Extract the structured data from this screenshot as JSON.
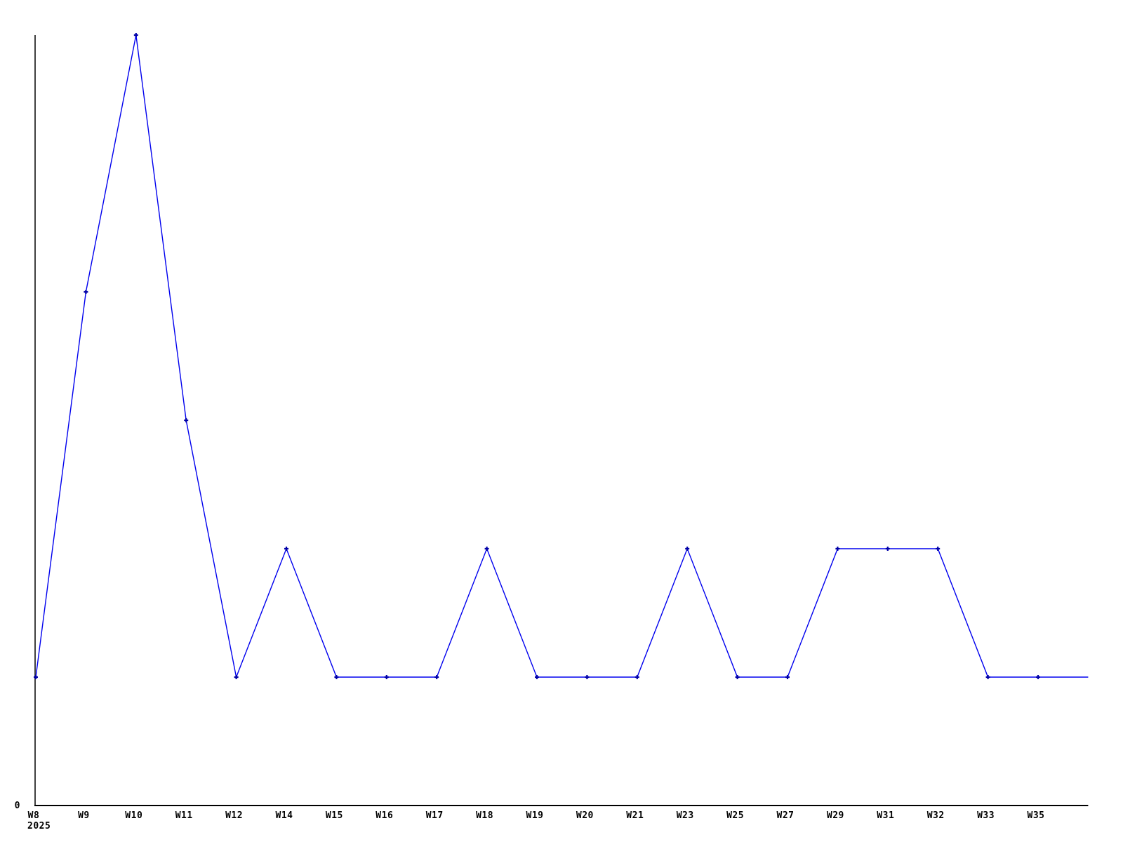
{
  "chart_data": {
    "type": "line",
    "title": "",
    "xlabel": "",
    "ylabel": "",
    "categories": [
      "W8",
      "W9",
      "W10",
      "W11",
      "W12",
      "W14",
      "W15",
      "W16",
      "W17",
      "W18",
      "W19",
      "W20",
      "W21",
      "W23",
      "W25",
      "W27",
      "W29",
      "W31",
      "W32",
      "W33",
      "W35"
    ],
    "values": [
      1,
      4,
      6,
      3,
      1,
      2,
      1,
      1,
      1,
      2,
      1,
      1,
      1,
      2,
      1,
      1,
      2,
      2,
      2,
      1,
      1
    ],
    "trailing_point": {
      "label": "",
      "value": 1,
      "marker": false
    },
    "x_axis_secondary_label": "2025",
    "y_tick_labels": [
      "0"
    ],
    "ylim": [
      0,
      6
    ],
    "grid": false,
    "legend_position": "none",
    "marker_style": "plus",
    "colors": {
      "line": "#0000ee",
      "marker": "#0000a8",
      "axis": "#000000",
      "text": "#000000",
      "background": "#ffffff"
    }
  }
}
